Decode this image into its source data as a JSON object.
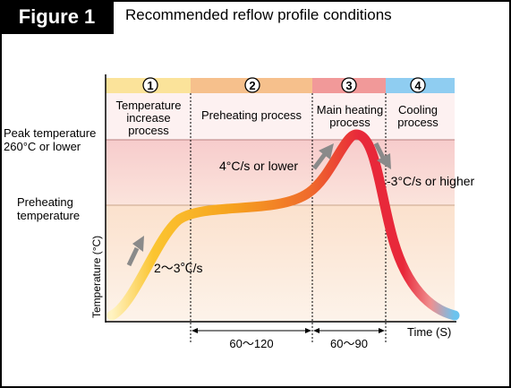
{
  "header": {
    "figure_label": "Figure 1",
    "title": "Recommended reflow profile conditions"
  },
  "left_labels": {
    "peak_line1": "Peak temperature",
    "peak_line2": "260°C or lower",
    "preheat_line1": "Preheating",
    "preheat_line2": "temperature"
  },
  "axes": {
    "y_label": "Temperature (°C)",
    "x_label": "Time (S)"
  },
  "phases": [
    {
      "num": "1",
      "line1": "Temperature",
      "line2": "increase",
      "line3": "process",
      "color": "#fbe39a"
    },
    {
      "num": "2",
      "line1": "Preheating process",
      "line2": "",
      "line3": "",
      "color": "#f6c08c"
    },
    {
      "num": "3",
      "line1": "Main heating",
      "line2": "process",
      "line3": "",
      "color": "#f19999"
    },
    {
      "num": "4",
      "line1": "Cooling",
      "line2": "process",
      "line3": "",
      "color": "#8fcdf1"
    }
  ],
  "rates": {
    "rise": "2～3℃/s",
    "ramp": "4°C/s or lower",
    "cool": "-3°C/s or higher"
  },
  "durations": {
    "preheat": "60～120",
    "main": "60～90"
  },
  "colors": {
    "peak_zone": "#f7cccc",
    "preheat_zone": "#fbe3cf",
    "curve_start": "#fff3c2",
    "curve_mid": "#f6a21e",
    "curve_hot": "#e8283a",
    "curve_end": "#6cc3ee",
    "arrow": "#8a8a8a"
  }
}
